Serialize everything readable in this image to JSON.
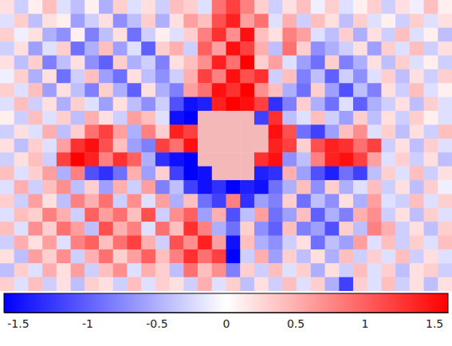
{
  "chart_data": {
    "type": "heatmap",
    "cells": [
      [
        0.2,
        -0.3,
        0.1,
        0.4,
        -0.2,
        -0.4,
        0.1,
        -0.5,
        0.3,
        -0.2,
        0.2,
        -0.3,
        0.4,
        0.3,
        -0.2,
        0.9,
        1.2,
        0.8,
        0.3,
        -0.3,
        0.2,
        0.4,
        -0.1,
        0.3,
        -0.2,
        0.1,
        0.3,
        -0.3,
        0.2,
        -0.1,
        0.4,
        0.1
      ],
      [
        -0.2,
        0.3,
        -0.4,
        0.2,
        0.1,
        -0.6,
        -0.3,
        0.2,
        -0.7,
        -0.4,
        0.3,
        -0.5,
        0.2,
        0.6,
        0.4,
        1.1,
        1.4,
        0.6,
        0.9,
        -0.2,
        0.5,
        -0.3,
        0.4,
        0.2,
        -0.4,
        0.3,
        -0.2,
        0.1,
        -0.3,
        0.3,
        -0.2,
        0.2
      ],
      [
        0.3,
        -0.1,
        0.2,
        -0.5,
        -0.7,
        0.1,
        -0.8,
        -0.4,
        0.2,
        -0.9,
        -0.3,
        0.1,
        -0.2,
        0.3,
        0.8,
        1.3,
        0.7,
        1.5,
        0.4,
        0.2,
        0.8,
        0.6,
        -0.2,
        -0.4,
        0.3,
        -0.5,
        0.2,
        -0.3,
        0.4,
        -0.2,
        0.1,
        -0.4
      ],
      [
        -0.3,
        0.2,
        -0.6,
        -0.2,
        0.3,
        -0.9,
        -0.5,
        0.4,
        -0.6,
        -0.2,
        -1.0,
        0.3,
        0.5,
        -0.3,
        1.0,
        0.6,
        1.5,
        1.2,
        0.5,
        -0.4,
        0.9,
        0.3,
        -0.7,
        -0.5,
        -0.3,
        0.2,
        -0.6,
        0.3,
        -0.2,
        0.4,
        -0.3,
        0.2
      ],
      [
        0.2,
        -0.4,
        0.3,
        -0.8,
        -0.4,
        0.2,
        -0.7,
        -1.0,
        0.3,
        -0.5,
        -0.3,
        -0.8,
        0.2,
        0.4,
        0.7,
        1.4,
        0.9,
        1.6,
        0.3,
        0.6,
        -0.2,
        -0.6,
        -0.9,
        0.3,
        -0.8,
        -0.5,
        0.2,
        -0.4,
        0.3,
        -0.2,
        0.1,
        -0.3
      ],
      [
        -0.1,
        0.3,
        -0.5,
        0.2,
        -0.9,
        -0.3,
        0.4,
        -0.6,
        -0.9,
        0.2,
        -0.4,
        -0.7,
        -0.3,
        0.5,
        1.2,
        0.8,
        1.5,
        1.1,
        1.3,
        -0.3,
        0.4,
        -0.8,
        -0.4,
        -1.0,
        -0.3,
        -0.7,
        -0.2,
        0.3,
        -0.4,
        0.2,
        -0.3,
        0.3
      ],
      [
        0.3,
        -0.2,
        0.4,
        -0.6,
        0.2,
        -0.4,
        -0.8,
        0.3,
        -0.5,
        -1.0,
        0.2,
        -0.5,
        -0.8,
        0.6,
        0.9,
        1.5,
        1.3,
        1.6,
        0.7,
        0.4,
        -0.5,
        -0.9,
        0.3,
        -0.6,
        -1.1,
        -0.4,
        -0.8,
        0.2,
        -0.3,
        0.4,
        -0.2,
        0.1
      ],
      [
        -0.2,
        0.4,
        -0.3,
        0.2,
        -0.5,
        0.3,
        -0.2,
        -0.6,
        0.2,
        -0.4,
        -0.7,
        -0.3,
        -1.1,
        -1.5,
        -1.4,
        1.4,
        1.6,
        1.5,
        1.2,
        -1.3,
        -0.8,
        0.3,
        -0.5,
        -0.9,
        -0.2,
        -1.0,
        -0.5,
        -0.3,
        0.2,
        -0.4,
        0.3,
        -0.2
      ],
      [
        0.1,
        -0.3,
        0.4,
        -0.2,
        0.3,
        -0.4,
        0.5,
        0.2,
        -0.3,
        0.6,
        0.4,
        -0.2,
        -1.5,
        -1.6,
        null,
        null,
        null,
        null,
        -1.2,
        1.3,
        -0.4,
        -0.2,
        0.4,
        -0.3,
        -0.6,
        0.3,
        -0.4,
        0.2,
        -0.3,
        0.3,
        0.1,
        -0.2
      ],
      [
        -0.3,
        0.2,
        -0.2,
        0.5,
        -0.4,
        0.3,
        0.9,
        1.2,
        0.6,
        -0.5,
        0.8,
        0.3,
        1.4,
        1.2,
        null,
        null,
        null,
        null,
        null,
        1.5,
        1.1,
        -0.9,
        -1.2,
        -0.6,
        0.4,
        0.7,
        -0.2,
        0.3,
        -0.4,
        0.2,
        -0.3,
        0.4
      ],
      [
        0.2,
        -0.4,
        0.3,
        -0.2,
        0.6,
        1.3,
        1.5,
        1.1,
        0.4,
        -0.6,
        -0.8,
        1.2,
        0.9,
        1.5,
        null,
        null,
        null,
        null,
        null,
        1.4,
        1.2,
        0.3,
        1.1,
        1.4,
        1.3,
        0.9,
        1.2,
        -0.3,
        0.2,
        -0.4,
        0.3,
        -0.2
      ],
      [
        -0.3,
        0.2,
        0.4,
        -0.3,
        1.2,
        1.6,
        1.4,
        0.8,
        1.3,
        1.0,
        -0.5,
        -1.3,
        -1.5,
        -1.6,
        null,
        null,
        null,
        null,
        1.3,
        1.5,
        -0.7,
        -0.4,
        0.8,
        1.4,
        1.5,
        1.2,
        0.6,
        -0.2,
        0.3,
        -0.3,
        0.2,
        -0.4
      ],
      [
        0.4,
        -0.2,
        0.3,
        0.6,
        -0.5,
        0.8,
        -1.1,
        -1.3,
        -0.9,
        0.5,
        -0.6,
        0.3,
        -1.2,
        -1.6,
        -1.5,
        null,
        null,
        null,
        -1.4,
        -1.3,
        0.5,
        -0.6,
        -1.1,
        -1.4,
        -0.9,
        -1.2,
        -0.4,
        0.3,
        -0.2,
        0.4,
        -0.3,
        0.2
      ],
      [
        -0.2,
        0.5,
        -0.3,
        0.4,
        0.7,
        -0.4,
        0.3,
        -0.6,
        0.5,
        -0.3,
        0.6,
        -0.8,
        -0.4,
        -1.2,
        -1.5,
        -1.3,
        -1.6,
        -1.4,
        -1.5,
        -0.9,
        -0.5,
        0.4,
        -0.7,
        0.3,
        -0.5,
        -0.2,
        0.4,
        -0.3,
        0.2,
        -0.4,
        0.3,
        -0.1
      ],
      [
        0.3,
        -0.3,
        0.6,
        0.2,
        -0.4,
        0.8,
        0.5,
        0.9,
        -0.3,
        0.7,
        -0.2,
        0.6,
        -0.5,
        0.4,
        -0.9,
        -1.2,
        0.8,
        -1.3,
        -0.6,
        -0.8,
        0.3,
        -0.9,
        -0.4,
        -0.7,
        0.2,
        -0.5,
        0.6,
        -0.2,
        -0.3,
        0.4,
        -0.2,
        0.3
      ],
      [
        -0.2,
        0.4,
        0.3,
        0.8,
        0.5,
        -0.3,
        1.0,
        0.6,
        0.9,
        0.4,
        1.1,
        -0.3,
        0.7,
        1.0,
        -0.6,
        0.5,
        -1.1,
        -0.4,
        0.6,
        -0.9,
        -0.6,
        0.4,
        -1.0,
        -0.5,
        -0.8,
        0.5,
        0.7,
        -0.3,
        0.2,
        -0.4,
        0.3,
        -0.2
      ],
      [
        0.4,
        -0.2,
        0.7,
        0.3,
        0.9,
        0.6,
        -0.4,
        1.1,
        0.5,
        0.8,
        -0.2,
        0.9,
        0.4,
        1.3,
        0.8,
        -0.5,
        -0.9,
        0.3,
        -0.7,
        -1.0,
        0.4,
        -0.8,
        -0.6,
        -1.1,
        0.3,
        -0.4,
        0.8,
        0.5,
        -0.3,
        0.2,
        -0.4,
        0.3
      ],
      [
        -0.3,
        0.5,
        0.2,
        0.6,
        -0.2,
        0.8,
        1.0,
        0.4,
        0.9,
        1.2,
        0.5,
        -0.3,
        1.1,
        0.7,
        1.4,
        0.6,
        -1.5,
        0.4,
        -0.5,
        -0.7,
        -0.3,
        0.2,
        -0.9,
        -0.4,
        -0.6,
        0.6,
        -0.2,
        0.4,
        -0.3,
        0.3,
        -0.2,
        0.4
      ],
      [
        0.2,
        -0.4,
        0.6,
        0.3,
        0.7,
        -0.3,
        0.5,
        0.9,
        0.3,
        0.6,
        1.0,
        0.4,
        0.8,
        1.3,
        0.9,
        1.2,
        -1.6,
        -0.3,
        0.5,
        -0.6,
        0.3,
        -0.4,
        0.2,
        -0.5,
        0.4,
        -0.3,
        0.3,
        -0.2,
        0.4,
        -0.3,
        0.2,
        -0.2
      ],
      [
        -0.4,
        0.3,
        -0.2,
        0.5,
        0.2,
        0.6,
        -0.3,
        0.4,
        0.7,
        -0.2,
        0.5,
        0.3,
        -0.4,
        0.9,
        0.4,
        0.7,
        -0.8,
        0.3,
        -0.3,
        0.4,
        -0.2,
        0.3,
        -0.5,
        0.2,
        -0.3,
        0.4,
        -0.2,
        0.3,
        -0.4,
        0.2,
        0.3,
        -0.3
      ],
      [
        0.3,
        -0.2,
        0.4,
        -0.3,
        0.2,
        -0.4,
        0.3,
        0.2,
        -0.3,
        0.4,
        -0.2,
        0.3,
        0.2,
        -0.3,
        0.5,
        -0.2,
        0.3,
        -0.4,
        0.2,
        -0.3,
        0.4,
        -0.2,
        0.3,
        -0.5,
        -1.2,
        0.3,
        -0.2,
        0.4,
        -0.3,
        0.2,
        -0.4,
        0.2
      ]
    ],
    "colorbar": {
      "range": [
        -1.6,
        1.6
      ],
      "ticks": [
        -1.5,
        -1,
        -0.5,
        0,
        0.5,
        1,
        1.5
      ]
    }
  }
}
